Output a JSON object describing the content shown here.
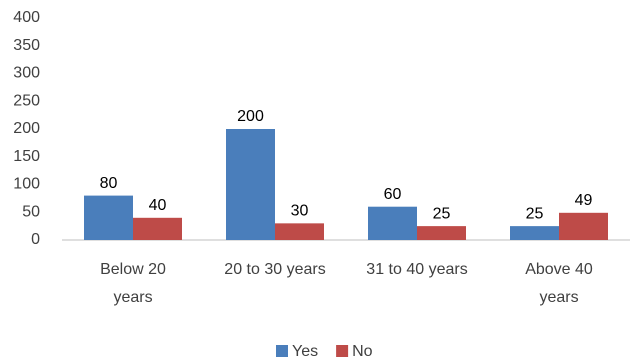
{
  "chart_data": {
    "type": "bar",
    "categories": [
      "Below 20 years",
      "20 to 30 years",
      "31 to 40 years",
      "Above 40 years"
    ],
    "series": [
      {
        "name": "Yes",
        "color": "#4a7ebb",
        "values": [
          80,
          200,
          60,
          25
        ]
      },
      {
        "name": "No",
        "color": "#be4b48",
        "values": [
          40,
          30,
          25,
          49
        ]
      }
    ],
    "ylim": [
      0,
      400
    ],
    "yticks": [
      0,
      50,
      100,
      150,
      200,
      250,
      300,
      350,
      400
    ],
    "grid": false,
    "legend": "bottom"
  }
}
